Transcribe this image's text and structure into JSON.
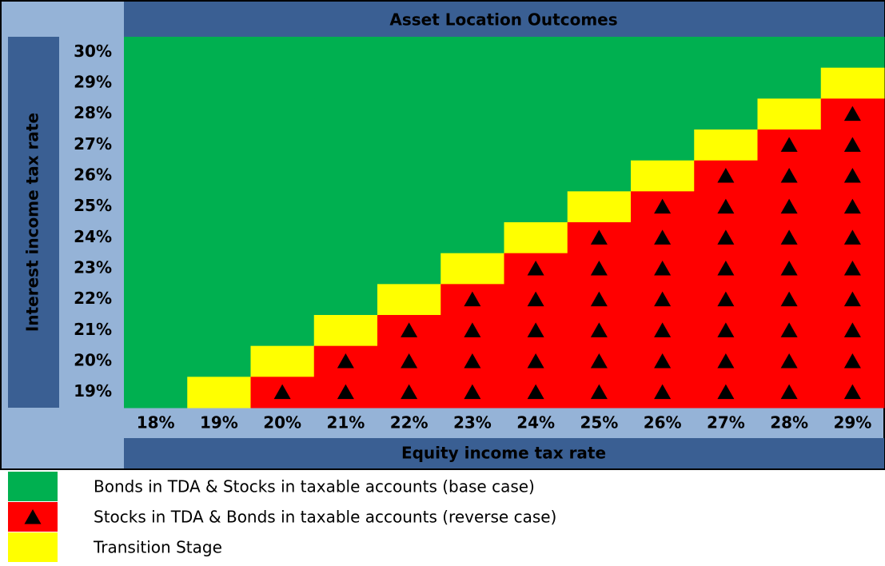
{
  "chart_data": {
    "type": "heatmap",
    "title": "Asset Location Outcomes",
    "x_label": "Equity income tax rate",
    "y_label": "Interest income tax rate",
    "x_categories": [
      "18%",
      "19%",
      "20%",
      "21%",
      "22%",
      "23%",
      "24%",
      "25%",
      "26%",
      "27%",
      "28%",
      "29%"
    ],
    "y_categories": [
      "30%",
      "29%",
      "28%",
      "27%",
      "26%",
      "25%",
      "24%",
      "23%",
      "22%",
      "21%",
      "20%",
      "19%"
    ],
    "legend": [
      {
        "label": "Bonds in TDA & Stocks in taxable accounts (base case)",
        "color": "#00b050"
      },
      {
        "label": "Stocks in TDA & Bonds in taxable accounts (reverse case)",
        "color": "#ff0000",
        "marker": "triangle"
      },
      {
        "label": "Transition Stage",
        "color": "#ffff00"
      }
    ],
    "values": [
      [
        0,
        0,
        0,
        0,
        0,
        0,
        0,
        0,
        0,
        0,
        0,
        0
      ],
      [
        0,
        0,
        0,
        0,
        0,
        0,
        0,
        0,
        0,
        0,
        0,
        2
      ],
      [
        0,
        0,
        0,
        0,
        0,
        0,
        0,
        0,
        0,
        0,
        2,
        1
      ],
      [
        0,
        0,
        0,
        0,
        0,
        0,
        0,
        0,
        0,
        2,
        1,
        1
      ],
      [
        0,
        0,
        0,
        0,
        0,
        0,
        0,
        0,
        2,
        1,
        1,
        1
      ],
      [
        0,
        0,
        0,
        0,
        0,
        0,
        0,
        2,
        1,
        1,
        1,
        1
      ],
      [
        0,
        0,
        0,
        0,
        0,
        0,
        2,
        1,
        1,
        1,
        1,
        1
      ],
      [
        0,
        0,
        0,
        0,
        0,
        2,
        1,
        1,
        1,
        1,
        1,
        1
      ],
      [
        0,
        0,
        0,
        0,
        2,
        1,
        1,
        1,
        1,
        1,
        1,
        1
      ],
      [
        0,
        0,
        0,
        2,
        1,
        1,
        1,
        1,
        1,
        1,
        1,
        1
      ],
      [
        0,
        0,
        2,
        1,
        1,
        1,
        1,
        1,
        1,
        1,
        1,
        1
      ],
      [
        0,
        2,
        1,
        1,
        1,
        1,
        1,
        1,
        1,
        1,
        1,
        1
      ]
    ]
  }
}
